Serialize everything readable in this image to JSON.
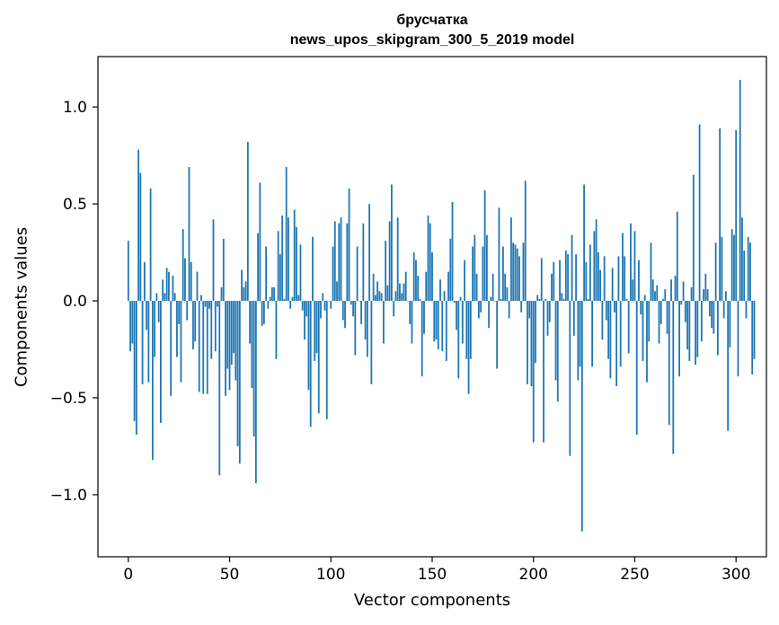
{
  "chart_data": {
    "type": "bar",
    "title_line1": "брусчатка",
    "title_line2": "news_upos_skipgram_300_5_2019 model",
    "xlabel": "Vector components",
    "ylabel": "Components values",
    "xlim": [
      -15,
      315
    ],
    "ylim": [
      -1.32,
      1.26
    ],
    "xticks": [
      0,
      50,
      100,
      150,
      200,
      250,
      300
    ],
    "xtick_labels": [
      "0",
      "50",
      "100",
      "150",
      "200",
      "250",
      "300"
    ],
    "yticks": [
      -1.0,
      -0.5,
      0.0,
      0.5,
      1.0
    ],
    "ytick_labels": [
      "−1.0",
      "−0.5",
      "0.0",
      "0.5",
      "1.0"
    ],
    "bar_color": "#1f77b4",
    "grid": false,
    "values": [
      0.31,
      -0.26,
      -0.22,
      -0.62,
      -0.69,
      0.78,
      0.66,
      -0.43,
      0.2,
      -0.15,
      -0.42,
      0.58,
      -0.82,
      -0.29,
      0.04,
      -0.11,
      -0.63,
      0.11,
      0.04,
      0.17,
      0.15,
      -0.49,
      0.13,
      0.04,
      -0.29,
      -0.12,
      -0.42,
      0.37,
      0.22,
      -0.1,
      0.69,
      0.2,
      -0.25,
      -0.21,
      0.15,
      -0.47,
      0.03,
      -0.48,
      -0.03,
      -0.48,
      -0.04,
      -0.3,
      0.42,
      -0.26,
      -0.03,
      -0.9,
      0.07,
      0.32,
      -0.49,
      -0.35,
      -0.46,
      -0.33,
      -0.27,
      -0.41,
      -0.75,
      -0.84,
      0.16,
      0.07,
      0.1,
      0.82,
      -0.22,
      -0.45,
      -0.7,
      -0.94,
      0.35,
      0.61,
      -0.13,
      -0.12,
      0.28,
      -0.04,
      0.02,
      0.07,
      0.07,
      -0.3,
      0.36,
      0.24,
      0.44,
      0.01,
      0.69,
      0.43,
      -0.04,
      0.02,
      0.47,
      0.38,
      0.03,
      0.29,
      -0.05,
      -0.2,
      -0.08,
      -0.46,
      -0.65,
      0.33,
      -0.31,
      -0.27,
      -0.58,
      -0.09,
      0.04,
      -0.05,
      -0.61,
      0.0,
      -0.04,
      0.28,
      0.41,
      0.1,
      0.4,
      0.43,
      -0.1,
      -0.14,
      0.4,
      0.58,
      -0.02,
      -0.08,
      -0.28,
      0.28,
      0.0,
      -0.12,
      0.4,
      -0.2,
      -0.29,
      0.5,
      -0.43,
      0.14,
      0.03,
      0.1,
      0.05,
      0.04,
      -0.22,
      0.31,
      0.08,
      0.41,
      0.6,
      -0.08,
      0.05,
      0.43,
      0.09,
      0.04,
      0.09,
      0.15,
      0.0,
      -0.12,
      -0.22,
      0.25,
      0.21,
      0.13,
      0.01,
      -0.39,
      -0.17,
      0.15,
      0.44,
      0.4,
      0.25,
      -0.21,
      -0.2,
      -0.25,
      0.11,
      -0.26,
      0.05,
      -0.31,
      0.15,
      0.32,
      0.51,
      -0.01,
      -0.15,
      -0.4,
      0.02,
      -0.22,
      0.21,
      -0.3,
      -0.48,
      -0.3,
      0.28,
      0.34,
      0.14,
      -0.09,
      -0.06,
      0.28,
      0.57,
      0.34,
      -0.14,
      0.02,
      0.14,
      0.0,
      -0.35,
      0.48,
      0.01,
      0.28,
      0.14,
      0.07,
      -0.09,
      0.43,
      0.3,
      0.29,
      0.27,
      0.23,
      -0.06,
      0.3,
      0.62,
      -0.43,
      -0.09,
      -0.44,
      -0.73,
      -0.32,
      0.03,
      0.01,
      0.22,
      -0.73,
      0.01,
      -0.18,
      -0.11,
      0.14,
      0.2,
      -0.41,
      -0.52,
      0.21,
      0.04,
      0.01,
      0.26,
      0.24,
      -0.8,
      0.34,
      -0.18,
      0.24,
      -0.41,
      -0.34,
      -1.19,
      0.6,
      0.2,
      0.01,
      0.29,
      -0.34,
      0.36,
      0.42,
      0.25,
      0.16,
      -0.2,
      0.23,
      -0.1,
      -0.3,
      -0.4,
      0.17,
      -0.06,
      -0.44,
      0.23,
      -0.34,
      0.35,
      0.23,
      0.01,
      -0.27,
      0.4,
      0.11,
      0.36,
      -0.69,
      0.21,
      -0.07,
      -0.31,
      0.03,
      -0.42,
      -0.21,
      0.3,
      0.11,
      0.05,
      0.08,
      -0.22,
      -0.12,
      0.01,
      0.06,
      -0.17,
      -0.64,
      0.11,
      -0.79,
      0.13,
      0.46,
      -0.39,
      -0.02,
      0.1,
      -0.11,
      -0.25,
      -0.31,
      0.07,
      0.65,
      -0.33,
      -0.29,
      0.91,
      -0.21,
      0.06,
      0.14,
      0.06,
      -0.08,
      -0.14,
      -0.17,
      0.3,
      -0.28,
      0.89,
      0.33,
      -0.09,
      0.05,
      -0.67,
      -0.24,
      0.37,
      0.34,
      0.88,
      -0.39,
      1.14,
      0.43,
      0.26,
      -0.09,
      0.33,
      0.3,
      -0.38,
      -0.3
    ]
  }
}
